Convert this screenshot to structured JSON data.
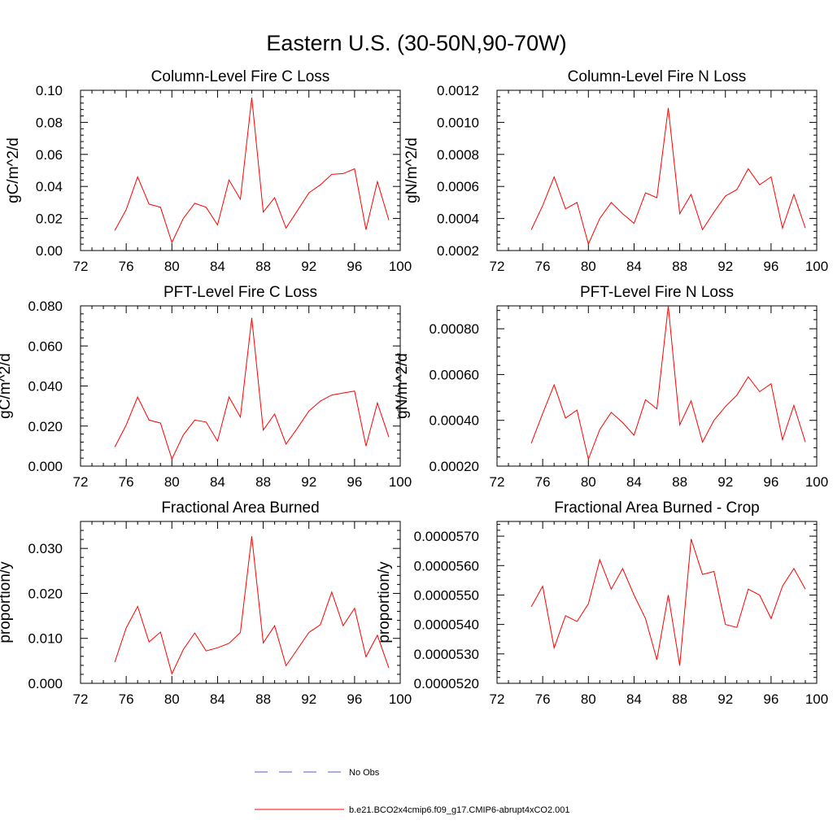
{
  "figure_title": "Eastern U.S. (30-50N,90-70W)",
  "legend": {
    "items": [
      {
        "label": "No Obs",
        "color": "#5a5acd",
        "dashed": true
      },
      {
        "label": "b.e21.BCO2x4cmip6.f09_g17.CMIP6-abrupt4xCO2.001",
        "color": "#ff0000",
        "dashed": false
      }
    ]
  },
  "chart_data": [
    {
      "type": "line",
      "title": "Column-Level Fire C Loss",
      "ylabel": "gC/m^2/d",
      "xlabel": "",
      "xlim": [
        72,
        100
      ],
      "ylim": [
        0,
        0.1
      ],
      "xticks": [
        72,
        76,
        80,
        84,
        88,
        92,
        96,
        100
      ],
      "yticks": [
        0,
        0.02,
        0.04,
        0.06,
        0.08,
        0.1
      ],
      "ytick_labels": [
        "0.00",
        "0.02",
        "0.04",
        "0.06",
        "0.08",
        "0.10"
      ],
      "x": [
        75,
        76,
        77,
        78,
        79,
        80,
        81,
        82,
        83,
        84,
        85,
        86,
        87,
        88,
        89,
        90,
        91,
        92,
        93,
        94,
        95,
        96,
        97,
        98,
        99
      ],
      "series": [
        {
          "name": "b.e21.BCO2x4cmip6.f09_g17.CMIP6-abrupt4xCO2.001",
          "color": "#ff0000",
          "values": [
            0.0125,
            0.0255,
            0.046,
            0.029,
            0.027,
            0.005,
            0.02,
            0.0295,
            0.027,
            0.016,
            0.044,
            0.032,
            0.0955,
            0.024,
            0.033,
            0.014,
            0.025,
            0.036,
            0.041,
            0.0475,
            0.048,
            0.051,
            0.013,
            0.043,
            0.019
          ]
        }
      ]
    },
    {
      "type": "line",
      "title": "Column-Level Fire N Loss",
      "ylabel": "gN/m^2/d",
      "xlabel": "",
      "xlim": [
        72,
        100
      ],
      "ylim": [
        0.0002,
        0.0012
      ],
      "xticks": [
        72,
        76,
        80,
        84,
        88,
        92,
        96,
        100
      ],
      "yticks": [
        0.0002,
        0.0004,
        0.0006,
        0.0008,
        0.001,
        0.0012
      ],
      "ytick_labels": [
        "0.0002",
        "0.0004",
        "0.0006",
        "0.0008",
        "0.0010",
        "0.0012"
      ],
      "x": [
        75,
        76,
        77,
        78,
        79,
        80,
        81,
        82,
        83,
        84,
        85,
        86,
        87,
        88,
        89,
        90,
        91,
        92,
        93,
        94,
        95,
        96,
        97,
        98,
        99
      ],
      "series": [
        {
          "name": "b.e21.BCO2x4cmip6.f09_g17.CMIP6-abrupt4xCO2.001",
          "color": "#ff0000",
          "values": [
            0.00033,
            0.00048,
            0.00066,
            0.00046,
            0.0005,
            0.00024,
            0.0004,
            0.0005,
            0.00043,
            0.00037,
            0.00056,
            0.00053,
            0.00109,
            0.00043,
            0.00055,
            0.00033,
            0.00044,
            0.00054,
            0.00058,
            0.00071,
            0.00061,
            0.00066,
            0.00034,
            0.00055,
            0.00034
          ]
        }
      ]
    },
    {
      "type": "line",
      "title": "PFT-Level Fire C Loss",
      "ylabel": "gC/m^2/d",
      "xlabel": "",
      "xlim": [
        72,
        100
      ],
      "ylim": [
        0,
        0.08
      ],
      "xticks": [
        72,
        76,
        80,
        84,
        88,
        92,
        96,
        100
      ],
      "yticks": [
        0,
        0.02,
        0.04,
        0.06,
        0.08
      ],
      "ytick_labels": [
        "0.000",
        "0.020",
        "0.040",
        "0.060",
        "0.080"
      ],
      "x": [
        75,
        76,
        77,
        78,
        79,
        80,
        81,
        82,
        83,
        84,
        85,
        86,
        87,
        88,
        89,
        90,
        91,
        92,
        93,
        94,
        95,
        96,
        97,
        98,
        99
      ],
      "series": [
        {
          "name": "b.e21.BCO2x4cmip6.f09_g17.CMIP6-abrupt4xCO2.001",
          "color": "#ff0000",
          "values": [
            0.0095,
            0.0205,
            0.0345,
            0.023,
            0.0215,
            0.0035,
            0.0155,
            0.023,
            0.022,
            0.0125,
            0.0345,
            0.0245,
            0.074,
            0.018,
            0.026,
            0.011,
            0.019,
            0.0275,
            0.0325,
            0.0355,
            0.0365,
            0.0375,
            0.01,
            0.0315,
            0.0145
          ]
        }
      ]
    },
    {
      "type": "line",
      "title": "PFT-Level Fire N Loss",
      "ylabel": "gN/m^2/d",
      "xlabel": "",
      "xlim": [
        72,
        100
      ],
      "ylim": [
        0.0002,
        0.0009
      ],
      "xticks": [
        72,
        76,
        80,
        84,
        88,
        92,
        96,
        100
      ],
      "yticks": [
        0.0002,
        0.0004,
        0.0006,
        0.0008
      ],
      "ytick_labels": [
        "0.00020",
        "0.00040",
        "0.00060",
        "0.00080"
      ],
      "x": [
        75,
        76,
        77,
        78,
        79,
        80,
        81,
        82,
        83,
        84,
        85,
        86,
        87,
        88,
        89,
        90,
        91,
        92,
        93,
        94,
        95,
        96,
        97,
        98,
        99
      ],
      "series": [
        {
          "name": "b.e21.BCO2x4cmip6.f09_g17.CMIP6-abrupt4xCO2.001",
          "color": "#ff0000",
          "values": [
            0.0003,
            0.00043,
            0.000555,
            0.00041,
            0.000445,
            0.00023,
            0.00036,
            0.000435,
            0.00039,
            0.000335,
            0.00049,
            0.00045,
            0.0009,
            0.00038,
            0.000485,
            0.000305,
            0.0004,
            0.00046,
            0.00051,
            0.00059,
            0.000525,
            0.00056,
            0.000315,
            0.000465,
            0.000305
          ]
        }
      ]
    },
    {
      "type": "line",
      "title": "Fractional Area Burned",
      "ylabel": "proportion/y",
      "xlabel": "",
      "xlim": [
        72,
        100
      ],
      "ylim": [
        0,
        0.036
      ],
      "xticks": [
        72,
        76,
        80,
        84,
        88,
        92,
        96,
        100
      ],
      "yticks": [
        0,
        0.01,
        0.02,
        0.03
      ],
      "ytick_labels": [
        "0.000",
        "0.010",
        "0.020",
        "0.030"
      ],
      "x": [
        75,
        76,
        77,
        78,
        79,
        80,
        81,
        82,
        83,
        84,
        85,
        86,
        87,
        88,
        89,
        90,
        91,
        92,
        93,
        94,
        95,
        96,
        97,
        98,
        99
      ],
      "series": [
        {
          "name": "b.e21.BCO2x4cmip6.f09_g17.CMIP6-abrupt4xCO2.001",
          "color": "#ff0000",
          "values": [
            0.0047,
            0.0123,
            0.0171,
            0.0092,
            0.0114,
            0.0021,
            0.0075,
            0.0112,
            0.0072,
            0.0079,
            0.0089,
            0.0113,
            0.0327,
            0.009,
            0.0128,
            0.0039,
            0.0076,
            0.0113,
            0.013,
            0.0203,
            0.0128,
            0.0167,
            0.0059,
            0.0107,
            0.0034
          ]
        }
      ]
    },
    {
      "type": "line",
      "title": "Fractional Area Burned - Crop",
      "ylabel": "proportion/y",
      "xlabel": "",
      "xlim": [
        72,
        100
      ],
      "ylim": [
        5.2e-05,
        5.75e-05
      ],
      "xticks": [
        72,
        76,
        80,
        84,
        88,
        92,
        96,
        100
      ],
      "yticks": [
        5.2e-05,
        5.3e-05,
        5.4e-05,
        5.5e-05,
        5.6e-05,
        5.7e-05
      ],
      "ytick_labels": [
        "0.0000520",
        "0.0000530",
        "0.0000540",
        "0.0000550",
        "0.0000560",
        "0.0000570"
      ],
      "x": [
        75,
        76,
        77,
        78,
        79,
        80,
        81,
        82,
        83,
        84,
        85,
        86,
        87,
        88,
        89,
        90,
        91,
        92,
        93,
        94,
        95,
        96,
        97,
        98,
        99
      ],
      "series": [
        {
          "name": "b.e21.BCO2x4cmip6.f09_g17.CMIP6-abrupt4xCO2.001",
          "color": "#ff0000",
          "values": [
            5.46e-05,
            5.53e-05,
            5.32e-05,
            5.43e-05,
            5.41e-05,
            5.47e-05,
            5.62e-05,
            5.52e-05,
            5.59e-05,
            5.5e-05,
            5.42e-05,
            5.28e-05,
            5.5e-05,
            5.26e-05,
            5.69e-05,
            5.57e-05,
            5.58e-05,
            5.4e-05,
            5.39e-05,
            5.52e-05,
            5.5e-05,
            5.42e-05,
            5.53e-05,
            5.59e-05,
            5.52e-05
          ]
        }
      ]
    }
  ]
}
